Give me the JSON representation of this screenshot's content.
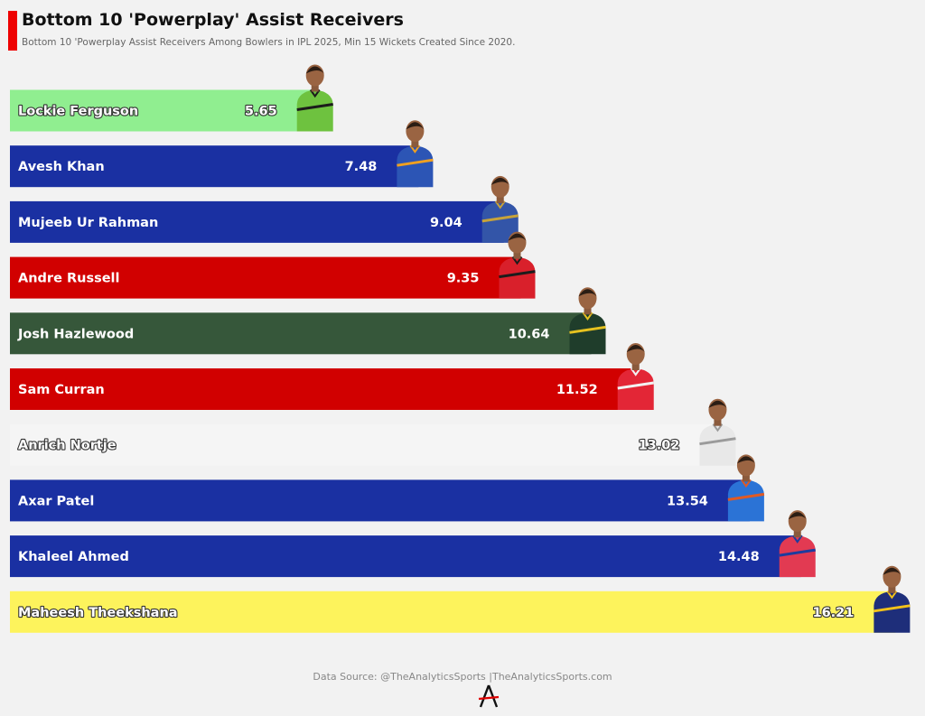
{
  "header": {
    "title": "Bottom 10 'Powerplay' Assist Receivers",
    "subtitle": "Bottom 10 'Powerplay Assist Receivers Among Bowlers in IPL 2025, Min 15 Wickets Created Since 2020."
  },
  "footer": {
    "source": "Data Source: @TheAnalyticsSports |TheAnalyticsSports.com"
  },
  "colors": {
    "accent": "#ee0000",
    "background": "#f2f2f2"
  },
  "chart_data": {
    "type": "bar",
    "orientation": "horizontal",
    "xlim": [
      0,
      16.21
    ],
    "grid": false,
    "legend": "none",
    "categories": [
      "Lockie Ferguson",
      "Avesh Khan",
      "Mujeeb Ur Rahman",
      "Andre Russell",
      "Josh Hazlewood",
      "Sam Curran",
      "Anrich Nortje",
      "Axar Patel",
      "Khaleel Ahmed",
      "Maheesh Theekshana"
    ],
    "values": [
      5.65,
      7.48,
      9.04,
      9.35,
      10.64,
      11.52,
      13.02,
      13.54,
      14.48,
      16.21
    ],
    "value_labels": [
      "5.65",
      "7.48",
      "9.04",
      "9.35",
      "10.64",
      "11.52",
      "13.02",
      "13.54",
      "14.48",
      "16.21"
    ],
    "bar_colors": [
      "#90ee90",
      "#1a30a2",
      "#1a30a2",
      "#d10000",
      "#36573a",
      "#d10000",
      "#f5f5f5",
      "#1a30a2",
      "#1a30a2",
      "#fdf35c"
    ],
    "label_colors": [
      "#ffffff",
      "#ffffff",
      "#ffffff",
      "#ffffff",
      "#ffffff",
      "#ffffff",
      "#ffffff",
      "#ffffff",
      "#ffffff",
      "#ffffff"
    ],
    "jersey_colors": [
      "#6ec23f",
      "#2c55b5",
      "#3355a8",
      "#d9202b",
      "#1f3d2b",
      "#e32636",
      "#e8e8e8",
      "#2b73d6",
      "#e23a52",
      "#1e2e7a"
    ],
    "jersey_trim": [
      "#1b1b1b",
      "#f0a020",
      "#c7a33a",
      "#1c1c1c",
      "#e6c220",
      "#f2f2f2",
      "#9a9a9a",
      "#e05a24",
      "#1d3c9e",
      "#f2c21a"
    ]
  }
}
